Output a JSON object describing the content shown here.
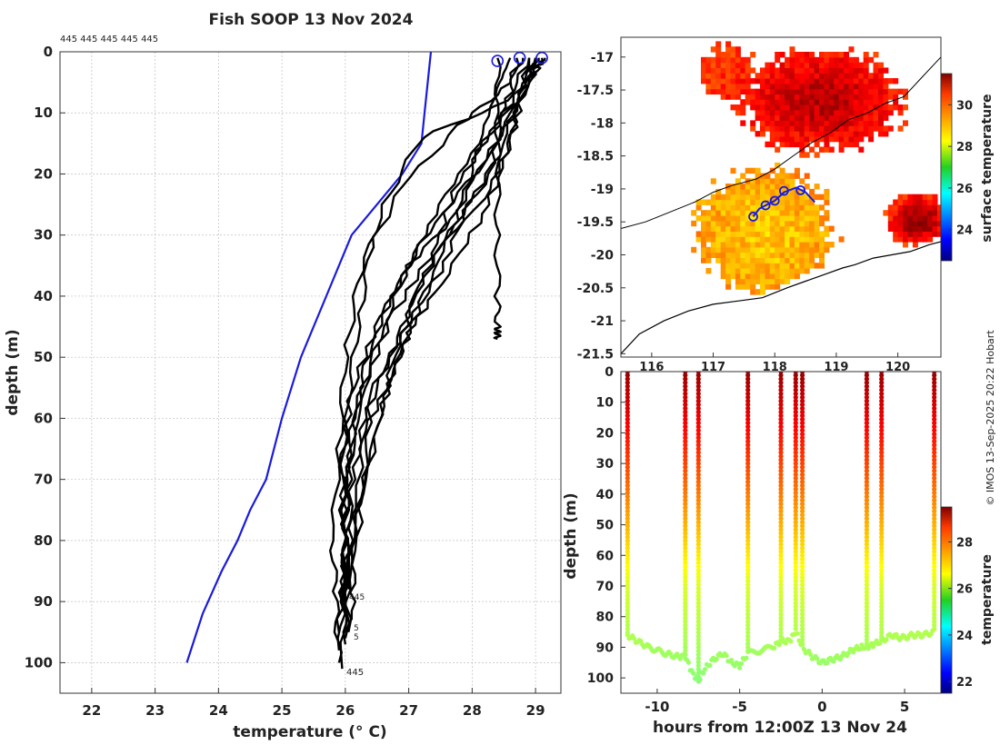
{
  "title": "Fish SOOP 13 Nov 2024",
  "credit": "© IMOS 13-Sep-2025 20:22 Hobart",
  "profile_ids_top": "445 445 445 445 445",
  "profile_id_bottom": "445",
  "profile_id_labels_mid": [
    "445",
    "5",
    "5"
  ],
  "colors": {
    "climatology": "#1a1adf",
    "profiles": "#000000",
    "markers": "#1a1adf",
    "grid": "#bfbfbf"
  },
  "chart_data": [
    {
      "id": "profiles",
      "type": "line",
      "xlabel": "temperature (° C)",
      "ylabel": "depth (m)",
      "xlim": [
        21.5,
        29.4
      ],
      "ylim": [
        105,
        0
      ],
      "xticks": [
        "22",
        "23",
        "24",
        "25",
        "26",
        "27",
        "28",
        "29"
      ],
      "yticks": [
        "0",
        "10",
        "20",
        "30",
        "40",
        "50",
        "60",
        "70",
        "80",
        "90",
        "100"
      ],
      "grid": true,
      "climatology": {
        "name": "climatology",
        "x": [
          27.35,
          27.25,
          27.2,
          26.9,
          26.5,
          26.1,
          25.7,
          25.3,
          25.0,
          24.75,
          24.5,
          24.3,
          24.05,
          23.75,
          23.5
        ],
        "y": [
          0,
          10,
          15,
          20,
          25,
          30,
          40,
          50,
          60,
          70,
          75,
          80,
          85,
          92,
          100
        ]
      },
      "profiles": [
        {
          "x": [
            28.4,
            28.4,
            28.4,
            28.4,
            28.4,
            28.4,
            28.4,
            28.4
          ],
          "y": [
            1,
            10,
            20,
            30,
            40,
            45,
            46,
            47
          ]
        },
        {
          "x": [
            28.7,
            28.6,
            27.2,
            26.6,
            26.2,
            26.0,
            25.9,
            25.8,
            25.85,
            25.9
          ],
          "y": [
            1,
            8,
            14,
            25,
            38,
            50,
            65,
            80,
            90,
            100
          ]
        },
        {
          "x": [
            28.8,
            28.5,
            27.8,
            26.9,
            26.4,
            26.2,
            26.0,
            25.95,
            26.0,
            25.95
          ],
          "y": [
            1,
            6,
            12,
            22,
            32,
            45,
            60,
            75,
            88,
            101
          ]
        },
        {
          "x": [
            29.1,
            28.9,
            28.2,
            27.4,
            26.8,
            26.4,
            26.15,
            26.0,
            25.95,
            26.0
          ],
          "y": [
            1,
            5,
            18,
            28,
            38,
            48,
            58,
            70,
            85,
            97
          ]
        },
        {
          "x": [
            29.0,
            28.7,
            28.1,
            27.8,
            27.0,
            26.6,
            26.2,
            26.05,
            26.0,
            26.05
          ],
          "y": [
            1,
            8,
            16,
            26,
            35,
            45,
            57,
            68,
            82,
            95
          ]
        },
        {
          "x": [
            28.9,
            28.5,
            28.3,
            27.6,
            27.1,
            26.7,
            26.3,
            26.1,
            26.0,
            25.9
          ],
          "y": [
            1,
            9,
            20,
            30,
            40,
            50,
            60,
            72,
            86,
            98
          ]
        },
        {
          "x": [
            29.0,
            28.8,
            28.4,
            27.9,
            27.5,
            26.9,
            26.4,
            26.3,
            26.15,
            26.1
          ],
          "y": [
            1,
            6,
            17,
            26,
            36,
            46,
            56,
            70,
            84,
            93
          ]
        },
        {
          "x": [
            28.9,
            28.7,
            28.5,
            28.1,
            27.5,
            27.0,
            26.8,
            26.3,
            26.1,
            26.0
          ],
          "y": [
            1,
            10,
            19,
            28,
            38,
            46,
            52,
            62,
            80,
            96
          ]
        },
        {
          "x": [
            29.05,
            28.9,
            28.3,
            27.7,
            27.4,
            27.0,
            26.7,
            26.5,
            26.1,
            26.0
          ],
          "y": [
            1,
            4,
            13,
            23,
            33,
            43,
            53,
            63,
            78,
            90
          ]
        },
        {
          "x": [
            29.15,
            29.0,
            28.6,
            28.0,
            27.6,
            27.2,
            26.8,
            26.5,
            26.2,
            26.05
          ],
          "y": [
            1,
            3,
            11,
            21,
            31,
            41,
            51,
            61,
            74,
            88
          ]
        },
        {
          "x": [
            29.0,
            28.8,
            28.6,
            28.2,
            27.3,
            26.7,
            26.3,
            26.1,
            26.0,
            25.95
          ],
          "y": [
            1,
            7,
            15,
            24,
            34,
            44,
            55,
            66,
            78,
            91
          ]
        },
        {
          "x": [
            28.6,
            28.4,
            28.1,
            27.5,
            27.0,
            26.5,
            26.1,
            25.95,
            26.0,
            25.9
          ],
          "y": [
            1,
            6,
            15,
            25,
            35,
            45,
            55,
            68,
            82,
            95
          ]
        }
      ],
      "surface_markers": [
        {
          "x": 28.4,
          "y": 1.5
        },
        {
          "x": 28.75,
          "y": 1.0
        },
        {
          "x": 29.1,
          "y": 1.0
        }
      ]
    },
    {
      "id": "map",
      "type": "heatmap",
      "colorbar_label": "surface temperature",
      "colorbar_ticks": [
        "24",
        "26",
        "28",
        "30"
      ],
      "colorbar_range": [
        22.5,
        31.5
      ],
      "xlim": [
        115.5,
        120.7
      ],
      "ylim": [
        -21.55,
        -16.7
      ],
      "xticks": [
        "116",
        "117",
        "118",
        "119",
        "120"
      ],
      "yticks": [
        "-17",
        "-17.5",
        "-18",
        "-18.5",
        "-19",
        "-19.5",
        "-20",
        "-20.5",
        "-21",
        "-21.5"
      ],
      "track": {
        "lon": [
          117.65,
          117.75,
          117.85,
          118.0,
          118.15,
          118.35,
          118.5,
          118.65
        ],
        "lat": [
          -19.42,
          -19.3,
          -19.25,
          -19.18,
          -19.05,
          -18.98,
          -19.05,
          -19.2
        ]
      },
      "track_markers": [
        {
          "lon": 117.65,
          "lat": -19.42
        },
        {
          "lon": 117.85,
          "lat": -19.25
        },
        {
          "lon": 118.0,
          "lat": -19.18
        },
        {
          "lon": 118.15,
          "lat": -19.03
        },
        {
          "lon": 118.42,
          "lat": -19.02
        }
      ],
      "coastline": {
        "lon": [
          115.5,
          115.8,
          116.2,
          116.6,
          117.0,
          117.4,
          117.8,
          118.2,
          118.5,
          118.8,
          119.1,
          119.3,
          119.6,
          119.9,
          120.2,
          120.5,
          120.7
        ],
        "lat": [
          -21.5,
          -21.2,
          -21.0,
          -20.85,
          -20.75,
          -20.7,
          -20.65,
          -20.5,
          -20.4,
          -20.3,
          -20.2,
          -20.15,
          -20.05,
          -20.0,
          -19.95,
          -19.85,
          -19.8
        ]
      },
      "shelf_contour": {
        "lon": [
          115.5,
          115.9,
          116.3,
          116.7,
          117.0,
          117.3,
          117.7,
          118.0,
          118.3,
          118.6,
          118.9,
          119.2,
          119.5,
          119.8,
          120.1,
          120.4,
          120.7
        ],
        "lat": [
          -19.6,
          -19.5,
          -19.35,
          -19.2,
          -19.05,
          -18.95,
          -18.85,
          -18.7,
          -18.5,
          -18.3,
          -18.15,
          -17.95,
          -17.85,
          -17.7,
          -17.6,
          -17.3,
          -17.0
        ]
      }
    },
    {
      "id": "section",
      "type": "scatter",
      "xlabel": "hours from 12:00Z 13 Nov 24",
      "ylabel": "depth (m)",
      "xlim": [
        -12.2,
        7.2
      ],
      "ylim": [
        105,
        0
      ],
      "xticks": [
        "-10",
        "-5",
        "0",
        "5"
      ],
      "yticks": [
        "0",
        "10",
        "20",
        "30",
        "40",
        "50",
        "60",
        "70",
        "80",
        "90",
        "100"
      ],
      "colorbar_label": "temperature",
      "colorbar_ticks": [
        "22",
        "24",
        "26",
        "28"
      ],
      "colorbar_range": [
        21.5,
        29.5
      ],
      "casts": [
        {
          "t": -11.8,
          "max_depth": 86
        },
        {
          "t": -8.3,
          "max_depth": 93
        },
        {
          "t": -7.5,
          "max_depth": 101
        },
        {
          "t": -4.5,
          "max_depth": 92
        },
        {
          "t": -2.5,
          "max_depth": 88
        },
        {
          "t": -1.6,
          "max_depth": 85
        },
        {
          "t": -1.2,
          "max_depth": 90
        },
        {
          "t": 2.7,
          "max_depth": 90
        },
        {
          "t": 3.6,
          "max_depth": 88
        },
        {
          "t": 6.8,
          "max_depth": 85
        }
      ],
      "bottom_trail": {
        "t": [
          -11.8,
          -11.2,
          -10.5,
          -9.5,
          -8.8,
          -8.3,
          -7.9,
          -7.5,
          -7.1,
          -6.6,
          -6.0,
          -5.5,
          -5.0,
          -4.5,
          -3.0,
          -2.5,
          -2.0,
          -1.6,
          -1.2,
          -0.6,
          0.0,
          0.6,
          1.2,
          1.8,
          2.3,
          2.7,
          3.1,
          3.6,
          4.2,
          4.8,
          5.5,
          6.1,
          6.8
        ],
        "d": [
          86,
          88,
          90,
          92,
          93,
          93,
          98,
          101,
          97,
          94,
          92,
          95,
          96,
          92,
          90,
          88,
          88,
          85,
          90,
          93,
          95,
          94,
          93,
          91,
          90,
          90,
          89,
          88,
          86,
          87,
          86,
          86,
          85
        ]
      }
    }
  ]
}
